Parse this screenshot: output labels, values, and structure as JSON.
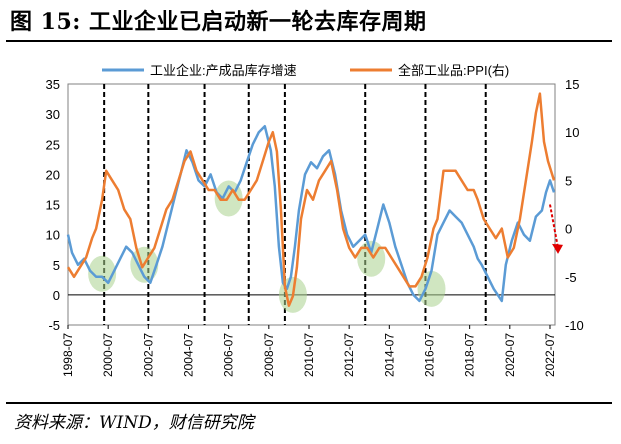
{
  "figure": {
    "title": "图 15:  工业企业已启动新一轮去库存周期",
    "source": "资料来源：WIND，财信研究院"
  },
  "chart_data": {
    "type": "line",
    "x_tick_labels": [
      "1998-07",
      "2000-07",
      "2002-07",
      "2004-07",
      "2006-07",
      "2008-07",
      "2010-07",
      "2012-07",
      "2014-07",
      "2016-07",
      "2018-07",
      "2020-07",
      "2022-07"
    ],
    "xlim": [
      "1998-07",
      "2022-09"
    ],
    "y_left": {
      "ylim": [
        -5,
        35
      ],
      "ticks": [
        -5,
        0,
        5,
        10,
        15,
        20,
        25,
        30,
        35
      ]
    },
    "y_right": {
      "ylim": [
        -10,
        15
      ],
      "ticks": [
        -10,
        -5,
        0,
        5,
        10,
        15
      ]
    },
    "legend_position": "top-center",
    "series": [
      {
        "name": "工业企业:产成品库存增速",
        "axis": "left",
        "color": "#5b9bd5",
        "x": [
          1998.5,
          1998.7,
          1999.0,
          1999.3,
          1999.6,
          1999.9,
          2000.2,
          2000.5,
          2000.8,
          2001.1,
          2001.4,
          2001.7,
          2002.0,
          2002.3,
          2002.6,
          2002.9,
          2003.2,
          2003.5,
          2003.8,
          2004.1,
          2004.4,
          2004.7,
          2005.0,
          2005.3,
          2005.6,
          2005.9,
          2006.2,
          2006.5,
          2006.8,
          2007.1,
          2007.4,
          2007.7,
          2008.0,
          2008.3,
          2008.6,
          2008.8,
          2009.0,
          2009.2,
          2009.4,
          2009.6,
          2009.8,
          2010.0,
          2010.3,
          2010.6,
          2010.9,
          2011.2,
          2011.5,
          2011.8,
          2012.1,
          2012.4,
          2012.7,
          2013.0,
          2013.3,
          2013.6,
          2013.9,
          2014.2,
          2014.5,
          2014.8,
          2015.1,
          2015.4,
          2015.7,
          2016.0,
          2016.3,
          2016.6,
          2016.9,
          2017.2,
          2017.5,
          2017.8,
          2018.1,
          2018.4,
          2018.7,
          2018.9,
          2019.1,
          2019.4,
          2019.7,
          2019.9,
          2020.1,
          2020.3,
          2020.6,
          2020.9,
          2021.2,
          2021.5,
          2021.8,
          2022.1,
          2022.3,
          2022.5,
          2022.7
        ],
        "values": [
          10,
          7,
          5,
          6,
          4,
          3,
          3,
          2,
          4,
          6,
          8,
          7,
          5,
          3,
          2,
          5,
          8,
          12,
          16,
          20,
          24,
          22,
          19,
          18,
          20,
          17,
          16,
          18,
          17,
          19,
          22,
          25,
          27,
          28,
          24,
          18,
          8,
          2,
          1,
          3,
          8,
          14,
          20,
          22,
          21,
          23,
          24,
          20,
          14,
          10,
          8,
          9,
          10,
          7,
          11,
          15,
          12,
          8,
          5,
          2,
          0,
          -1,
          1,
          4,
          10,
          12,
          14,
          13,
          12,
          10,
          8,
          6,
          5,
          3,
          1,
          0,
          -1,
          5,
          9,
          12,
          10,
          9,
          13,
          14,
          17,
          19,
          17
        ]
      },
      {
        "name": "全部工业品:PPI(右)",
        "axis": "right",
        "color": "#ed7d31",
        "x": [
          1998.5,
          1998.8,
          1999.1,
          1999.4,
          1999.7,
          1999.9,
          2000.2,
          2000.4,
          2000.7,
          2001.0,
          2001.3,
          2001.6,
          2001.9,
          2002.2,
          2002.5,
          2002.8,
          2003.1,
          2003.4,
          2003.7,
          2004.0,
          2004.3,
          2004.6,
          2004.9,
          2005.2,
          2005.5,
          2005.8,
          2006.1,
          2006.4,
          2006.7,
          2007.0,
          2007.3,
          2007.6,
          2007.9,
          2008.2,
          2008.5,
          2008.7,
          2008.9,
          2009.1,
          2009.3,
          2009.5,
          2009.7,
          2009.9,
          2010.1,
          2010.4,
          2010.7,
          2011.0,
          2011.3,
          2011.6,
          2011.9,
          2012.2,
          2012.5,
          2012.8,
          2013.1,
          2013.4,
          2013.7,
          2014.0,
          2014.3,
          2014.6,
          2014.9,
          2015.2,
          2015.5,
          2015.8,
          2016.1,
          2016.4,
          2016.7,
          2016.9,
          2017.2,
          2017.5,
          2017.8,
          2018.1,
          2018.4,
          2018.7,
          2018.9,
          2019.2,
          2019.5,
          2019.8,
          2020.1,
          2020.4,
          2020.7,
          2021.0,
          2021.3,
          2021.6,
          2021.8,
          2022.0,
          2022.2,
          2022.4,
          2022.7
        ],
        "values": [
          -4,
          -5,
          -4,
          -3,
          -1,
          0,
          3,
          6,
          5,
          4,
          2,
          1,
          -2,
          -4,
          -3,
          -2,
          0,
          2,
          3,
          5,
          7,
          8,
          6,
          5,
          4,
          4,
          3,
          3,
          4,
          3,
          3,
          4,
          5,
          7,
          9,
          10,
          8,
          2,
          -6,
          -8,
          -7,
          -4,
          1,
          4,
          3,
          5,
          6,
          7,
          4,
          0,
          -2,
          -3,
          -2,
          -2,
          -3,
          -2,
          -2,
          -3,
          -4,
          -5,
          -6,
          -6,
          -5,
          -3,
          0,
          1,
          6,
          6,
          6,
          5,
          4,
          4,
          3,
          1,
          0,
          -1,
          0,
          -3,
          -2,
          1,
          5,
          9,
          12,
          14,
          9,
          7,
          5
        ]
      }
    ],
    "vertical_markers": [
      2000.3,
      2002.5,
      2005.3,
      2007.5,
      2009.3,
      2013.3,
      2016.3,
      2019.3
    ],
    "highlights": [
      {
        "x": 2000.2,
        "y": 3.5
      },
      {
        "x": 2002.3,
        "y": 5
      },
      {
        "x": 2006.5,
        "y": 16
      },
      {
        "x": 2009.7,
        "y": 0
      },
      {
        "x": 2013.6,
        "y": 6
      },
      {
        "x": 2016.6,
        "y": 1
      }
    ],
    "arrow": {
      "from": [
        2022.5,
        2.5
      ],
      "to": [
        2022.9,
        -2
      ],
      "color": "#e00000"
    }
  }
}
